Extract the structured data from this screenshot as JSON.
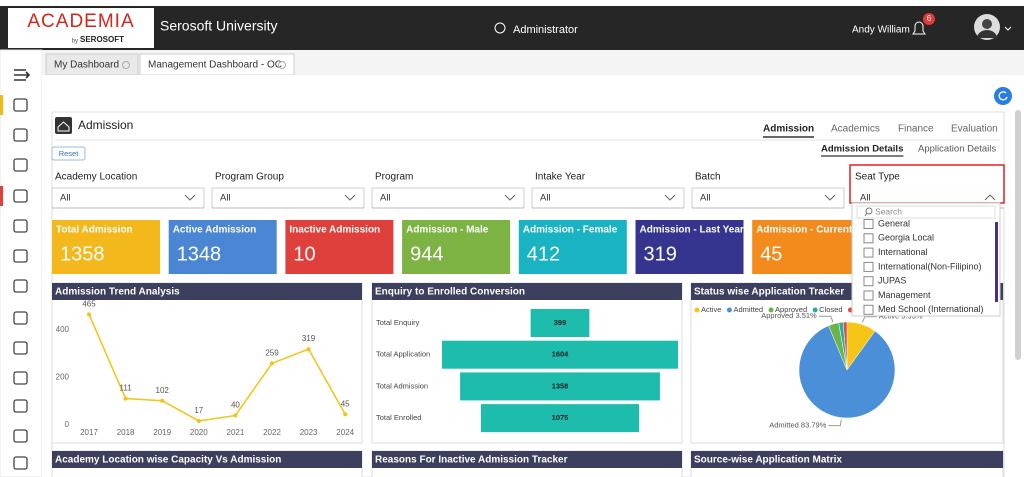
{
  "header": {
    "logo": "ACADEMIA",
    "logo_by": "by",
    "logo_brand": "SEROSOFT",
    "university": "Serosoft University",
    "role": "Administrator",
    "user": "Andy William",
    "notifications": 6
  },
  "tabs": [
    "My Dashboard",
    "Management Dashboard - OC"
  ],
  "section": {
    "title": "Admission",
    "reset": "Reset",
    "nav": [
      "Admission",
      "Academics",
      "Finance",
      "Evaluation"
    ],
    "subnav": [
      "Admission Details",
      "Application Details"
    ]
  },
  "filters": [
    {
      "label": "Academy Location",
      "value": "All"
    },
    {
      "label": "Program Group",
      "value": "All"
    },
    {
      "label": "Program",
      "value": "All"
    },
    {
      "label": "Intake Year",
      "value": "All"
    },
    {
      "label": "Batch",
      "value": "All"
    },
    {
      "label": "Seat Type",
      "value": "All"
    }
  ],
  "dropdown": {
    "search": "Search",
    "options": [
      "General",
      "Georgia Local",
      "International",
      "International(Non-Filipino)",
      "JUPAS",
      "Management",
      "Med School (International)"
    ]
  },
  "kpis": [
    {
      "label": "Total Admission",
      "value": 1358,
      "color": "#f2b81c"
    },
    {
      "label": "Active Admission",
      "value": 1348,
      "color": "#4a86d4"
    },
    {
      "label": "Inactive Admission",
      "value": 10,
      "color": "#e0403b"
    },
    {
      "label": "Admission - Male",
      "value": 944,
      "color": "#7cb342"
    },
    {
      "label": "Admission - Female",
      "value": 412,
      "color": "#19b3c4"
    },
    {
      "label": "Admission - Last Year",
      "value": 319,
      "color": "#35358f"
    },
    {
      "label": "Admission - Current Year",
      "value": 45,
      "color": "#f28a1c"
    }
  ],
  "charts": [
    {
      "type": "line",
      "title": "Admission Trend Analysis",
      "categories": [
        "2017",
        "2018",
        "2019",
        "2020",
        "2021",
        "2022",
        "2023",
        "2024"
      ],
      "values": [
        465,
        111,
        102,
        17,
        40,
        259,
        319,
        45
      ],
      "color": "#f2c314",
      "ylim": [
        0,
        500
      ],
      "yticks": [
        0,
        200,
        400
      ],
      "grid": false
    },
    {
      "type": "funnel",
      "title": "Enquiry to Enrolled Conversion",
      "categories": [
        "Total Enquiry",
        "Total Application",
        "Total Admission",
        "Total Enrolled"
      ],
      "values": [
        399,
        1604,
        1358,
        1075
      ],
      "color": "#1ebcac"
    },
    {
      "type": "pie",
      "title": "Status wise Application Tracker",
      "categories": [
        "Active",
        "Admitted",
        "Approved",
        "Closed",
        "C"
      ],
      "values": [
        9.93,
        83.79,
        3.51,
        1.5,
        1.27
      ],
      "value_labels": [
        "Active 9.93%",
        "Admitted 83.79%",
        "Approved 3.51%",
        null,
        null
      ],
      "colors": [
        "#f5c518",
        "#4a8fd8",
        "#6cb34a",
        "#23b0a6",
        "#e8453c"
      ]
    }
  ],
  "panels": [
    "Academy Location wise Capacity Vs Admission",
    "Reasons For Inactive Admission Tracker",
    "Source-wise Application Matrix"
  ]
}
